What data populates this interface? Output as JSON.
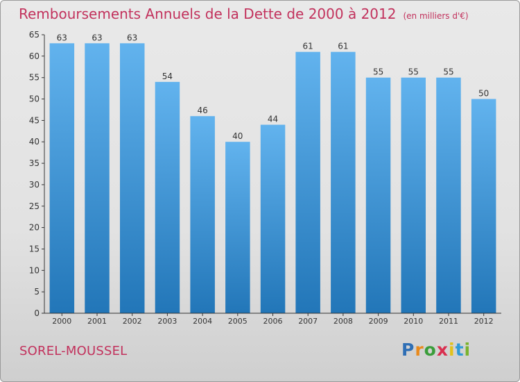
{
  "title": "Remboursements Annuels de la Dette de 2000 à 2012",
  "unit_note": "(en milliers d'€)",
  "commune": "SOREL-MOUSSEL",
  "logo": {
    "letters": [
      "P",
      "r",
      "o",
      "x",
      "i",
      "t",
      "i"
    ],
    "colors": [
      "#2f6fb5",
      "#e98a1c",
      "#3a9d3a",
      "#d92f4f",
      "#e2c21c",
      "#2f9bd6",
      "#7ab32e"
    ]
  },
  "colors": {
    "bar_light": "#62b3ee",
    "bar_dark": "#2276b8",
    "title": "#c2315c",
    "axis": "#333333"
  },
  "chart_data": {
    "type": "bar",
    "categories": [
      "2000",
      "2001",
      "2002",
      "2003",
      "2004",
      "2005",
      "2006",
      "2007",
      "2008",
      "2009",
      "2010",
      "2011",
      "2012"
    ],
    "values": [
      63,
      63,
      63,
      54,
      46,
      40,
      44,
      61,
      61,
      55,
      55,
      55,
      50
    ],
    "data_labels": [
      "63",
      "63",
      "63",
      "54",
      "46",
      "40",
      "44",
      "61",
      "61",
      "55",
      "55",
      "55",
      "50"
    ],
    "ylim": [
      0,
      65
    ],
    "yticks": [
      0,
      5,
      10,
      15,
      20,
      25,
      30,
      35,
      40,
      45,
      50,
      55,
      60,
      65
    ],
    "grid": false,
    "legend": "none"
  }
}
